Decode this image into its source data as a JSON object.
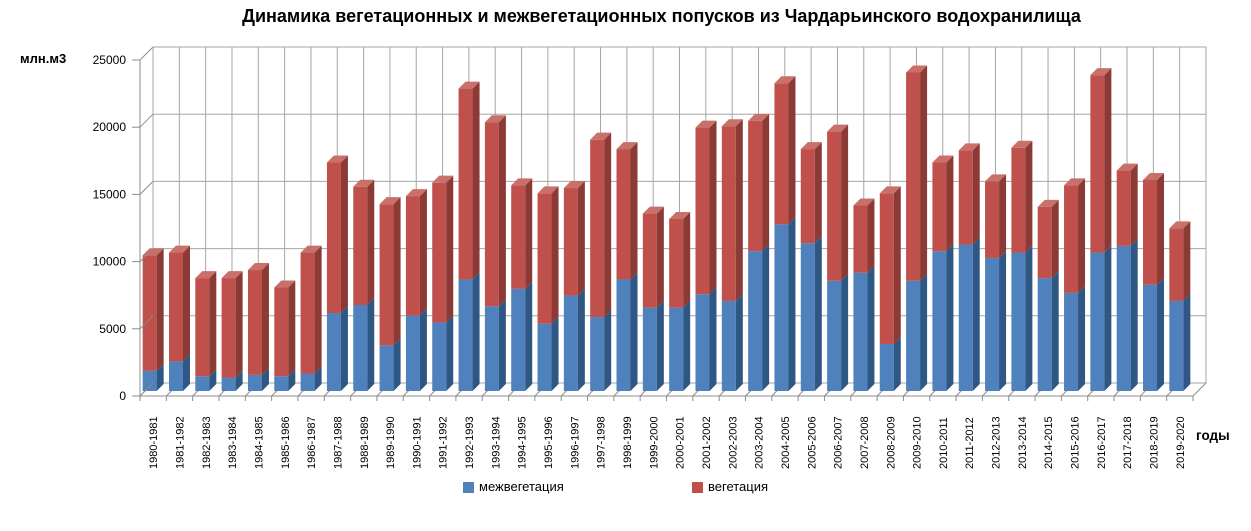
{
  "chart_data": {
    "type": "bar",
    "variant": "stacked-3d-column",
    "title": "Динамика вегетационных и межвегетационных попусков из Чардарьинского водохранилища",
    "ylabel": "млн.м3",
    "xlabel": "годы",
    "ylim": [
      0,
      25000
    ],
    "yticks": [
      0,
      5000,
      10000,
      15000,
      20000,
      25000
    ],
    "grid": true,
    "legend_position": "bottom-center",
    "categories": [
      "1980-1981",
      "1981-1982",
      "1982-1983",
      "1983-1984",
      "1984-1985",
      "1985-1986",
      "1986-1987",
      "1987-1988",
      "1988-1989",
      "1989-1990",
      "1990-1991",
      "1991-1992",
      "1992-1993",
      "1993-1994",
      "1994-1995",
      "1995-1996",
      "1996-1997",
      "1997-1998",
      "1998-1999",
      "1999-2000",
      "2000-2001",
      "2001-2002",
      "2002-2003",
      "2003-2004",
      "2004-2005",
      "2005-2006",
      "2006-2007",
      "2007-2008",
      "2008-2009",
      "2009-2010",
      "2010-2011",
      "2011-2012",
      "2012-2013",
      "2013-2014",
      "2014-2015",
      "2015-2016",
      "2016-2017",
      "2017-2018",
      "2018-2019",
      "2019-2020"
    ],
    "series": [
      {
        "name": "межвегетация",
        "color": "#4f81bd",
        "side_color": "#2f5783",
        "values": [
          1500,
          2200,
          1100,
          1000,
          1200,
          1100,
          1300,
          5800,
          6400,
          3400,
          5600,
          5100,
          8300,
          6300,
          7600,
          5000,
          7100,
          5500,
          8300,
          6200,
          6200,
          7200,
          6700,
          10400,
          12400,
          11000,
          8200,
          8800,
          3500,
          8200,
          10400,
          10900,
          9900,
          10300,
          8400,
          7300,
          10300,
          10800,
          7900,
          6700
        ]
      },
      {
        "name": "вегетация",
        "color": "#bf504c",
        "side_color": "#8c3a36",
        "top_color": "#c9706b",
        "values": [
          8600,
          8100,
          7300,
          7400,
          7800,
          6600,
          9000,
          11200,
          8800,
          10500,
          8900,
          10400,
          14200,
          13700,
          7700,
          9700,
          8000,
          13200,
          9700,
          7000,
          6600,
          12400,
          13000,
          9700,
          10500,
          7000,
          11100,
          5000,
          11200,
          15500,
          6600,
          7000,
          5700,
          7800,
          5300,
          8000,
          13200,
          5600,
          7800,
          5400
        ]
      }
    ],
    "colors": {
      "wall_grid": "#a6a6a6",
      "front_axis": "#8c8c8c",
      "text": "#000000",
      "background": "#ffffff"
    }
  }
}
